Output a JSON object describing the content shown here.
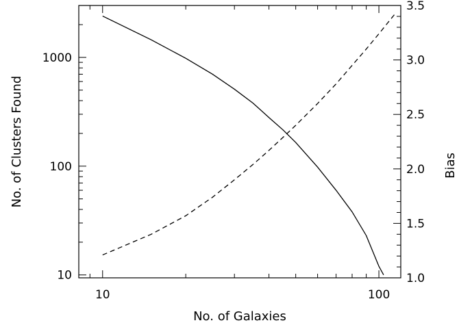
{
  "chart_data": {
    "type": "line",
    "title": "",
    "xlabel": "No. of Galaxies",
    "ylabel": "No. of Clusters Found",
    "y2label": "Bias",
    "x_scale": "log",
    "y_scale": "log",
    "y2_scale": "linear",
    "xlim": [
      8.2,
      120
    ],
    "ylim": [
      9.4,
      3000
    ],
    "y2lim": [
      1.0,
      3.5
    ],
    "x_ticks": [
      {
        "value": 10,
        "label": "10"
      },
      {
        "value": 100,
        "label": "100"
      }
    ],
    "y_ticks": [
      {
        "value": 10,
        "label": "10"
      },
      {
        "value": 100,
        "label": "100"
      },
      {
        "value": 1000,
        "label": "1000"
      }
    ],
    "y2_ticks": [
      {
        "value": 1.0,
        "label": "1.0"
      },
      {
        "value": 1.5,
        "label": "1.5"
      },
      {
        "value": 2.0,
        "label": "2.0"
      },
      {
        "value": 2.5,
        "label": "2.5"
      },
      {
        "value": 3.0,
        "label": "3.0"
      },
      {
        "value": 3.5,
        "label": "3.5"
      }
    ],
    "grid": false,
    "series": [
      {
        "axis": "left",
        "style": "solid",
        "x": [
          10,
          15,
          20,
          25,
          30,
          35,
          40,
          45,
          50,
          60,
          70,
          80,
          90,
          100,
          104
        ],
        "y": [
          2400,
          1450,
          980,
          700,
          510,
          380,
          280,
          215,
          165,
          98,
          60,
          38,
          23,
          12,
          10
        ]
      },
      {
        "axis": "right",
        "style": "dashed",
        "x": [
          10,
          15,
          20,
          25,
          30,
          35,
          40,
          45,
          50,
          60,
          70,
          80,
          90,
          100,
          110,
          115
        ],
        "y": [
          1.21,
          1.4,
          1.57,
          1.74,
          1.9,
          2.04,
          2.17,
          2.29,
          2.4,
          2.6,
          2.78,
          2.95,
          3.1,
          3.24,
          3.37,
          3.43
        ]
      }
    ]
  }
}
